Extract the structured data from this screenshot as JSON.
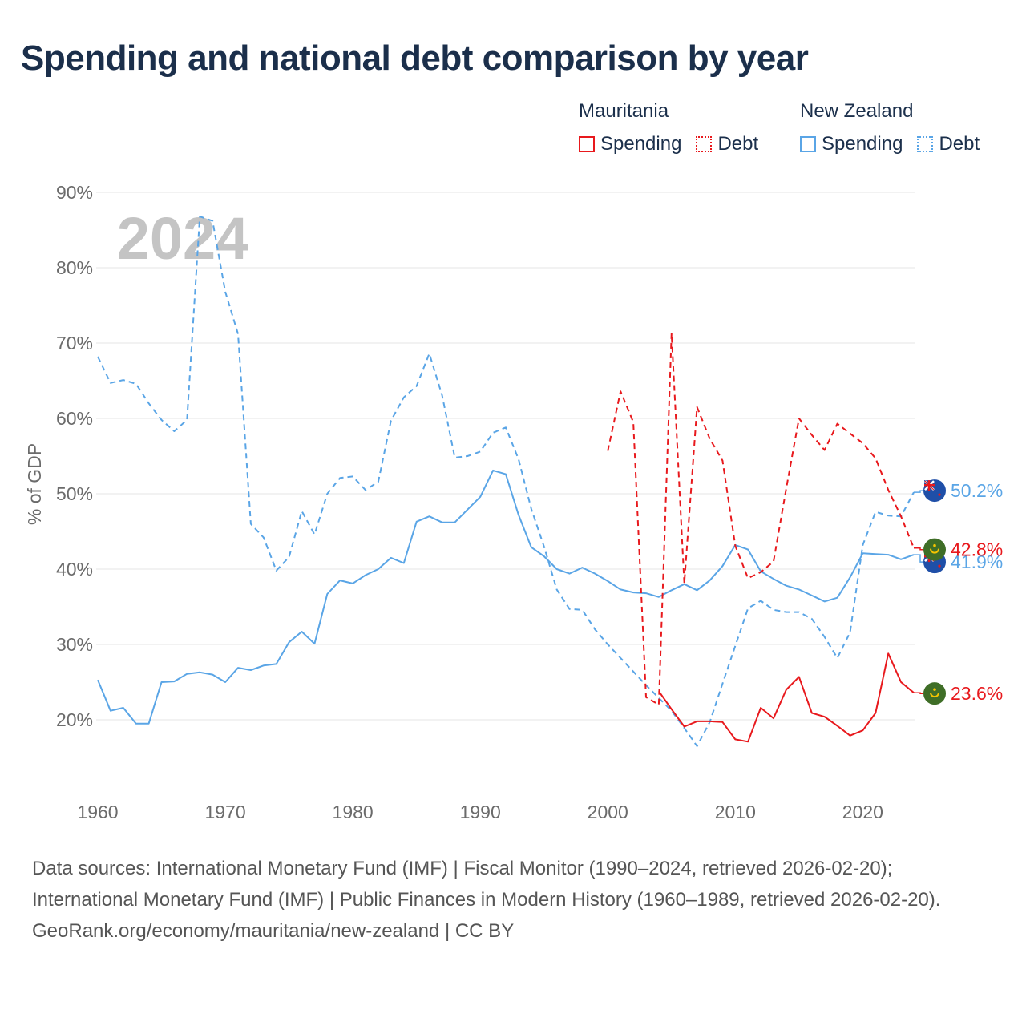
{
  "colors": {
    "title": "#1b2f4b",
    "mauritania": "#e8191d",
    "new_zealand": "#5aa5e6",
    "grid": "#e6e6e6",
    "axis_text": "#6b6b6b",
    "year_watermark": "#c4c4c4",
    "footer": "#555555"
  },
  "legend": {
    "groups": [
      {
        "name": "Mauritania",
        "color": "#e8191d",
        "items": [
          {
            "label": "Spending",
            "style": "solid"
          },
          {
            "label": "Debt",
            "style": "dotted"
          }
        ]
      },
      {
        "name": "New Zealand",
        "color": "#5aa5e6",
        "items": [
          {
            "label": "Spending",
            "style": "solid"
          },
          {
            "label": "Debt",
            "style": "dotted"
          }
        ]
      }
    ]
  },
  "footer": {
    "sources": "Data sources: International Monetary Fund (IMF) | Fiscal Monitor (1990–2024, retrieved 2026-02-20); International Monetary Fund (IMF) | Public Finances in Modern History (1960–1989, retrieved 2026-02-20).",
    "credit": "GeoRank.org/economy/mauritania/new-zealand | CC BY"
  },
  "chart_data": {
    "type": "line",
    "title": "Spending and national debt comparison by year",
    "year_label": "2024",
    "xlabel": "",
    "ylabel": "% of GDP",
    "xlim": [
      1960,
      2024
    ],
    "ylim": [
      10,
      90
    ],
    "x_ticks": [
      1960,
      1970,
      1980,
      1990,
      2000,
      2010,
      2020
    ],
    "y_ticks": [
      20,
      30,
      40,
      50,
      60,
      70,
      80,
      90
    ],
    "y_tick_labels": [
      "20%",
      "30%",
      "40%",
      "50%",
      "60%",
      "70%",
      "80%",
      "90%"
    ],
    "grid": true,
    "series": [
      {
        "name": "New Zealand Debt",
        "country": "New Zealand",
        "metric": "Debt",
        "style": "dashed",
        "color": "#5aa5e6",
        "end_label": "50.2%",
        "x": [
          1960,
          1961,
          1962,
          1963,
          1964,
          1965,
          1966,
          1967,
          1968,
          1969,
          1970,
          1971,
          1972,
          1973,
          1974,
          1975,
          1976,
          1977,
          1978,
          1979,
          1980,
          1981,
          1982,
          1983,
          1984,
          1985,
          1986,
          1987,
          1988,
          1989,
          1990,
          1991,
          1992,
          1993,
          1994,
          1995,
          1996,
          1997,
          1998,
          1999,
          2000,
          2001,
          2002,
          2003,
          2004,
          2005,
          2006,
          2007,
          2008,
          2009,
          2010,
          2011,
          2012,
          2013,
          2014,
          2015,
          2016,
          2017,
          2018,
          2019,
          2020,
          2021,
          2022,
          2023,
          2024
        ],
        "values": [
          68.2,
          64.7,
          65.1,
          64.6,
          62.0,
          59.8,
          58.3,
          59.8,
          86.8,
          86.2,
          76.8,
          71.2,
          46.0,
          44.2,
          39.8,
          41.6,
          47.7,
          44.6,
          50.0,
          52.1,
          52.3,
          50.5,
          51.6,
          59.7,
          62.8,
          64.3,
          68.6,
          63.1,
          54.8,
          55.0,
          55.6,
          58.1,
          58.8,
          54.6,
          48.0,
          43.0,
          37.3,
          34.7,
          34.6,
          32.0,
          30.0,
          28.2,
          26.4,
          24.6,
          22.9,
          21.2,
          18.9,
          16.5,
          19.7,
          24.8,
          29.8,
          34.8,
          35.8,
          34.6,
          34.3,
          34.3,
          33.4,
          31.0,
          28.2,
          31.6,
          43.2,
          47.6,
          47.1,
          47.0,
          50.2
        ]
      },
      {
        "name": "New Zealand Spending",
        "country": "New Zealand",
        "metric": "Spending",
        "style": "solid",
        "color": "#5aa5e6",
        "end_label": "41.9%",
        "x": [
          1960,
          1961,
          1962,
          1963,
          1964,
          1965,
          1966,
          1967,
          1968,
          1969,
          1970,
          1971,
          1972,
          1973,
          1974,
          1975,
          1976,
          1977,
          1978,
          1979,
          1980,
          1981,
          1982,
          1983,
          1984,
          1985,
          1986,
          1987,
          1988,
          1989,
          1990,
          1991,
          1992,
          1993,
          1994,
          1995,
          1996,
          1997,
          1998,
          1999,
          2000,
          2001,
          2002,
          2003,
          2004,
          2005,
          2006,
          2007,
          2008,
          2009,
          2010,
          2011,
          2012,
          2013,
          2014,
          2015,
          2016,
          2017,
          2018,
          2019,
          2020,
          2021,
          2022,
          2023,
          2024
        ],
        "values": [
          25.3,
          21.2,
          21.6,
          19.5,
          19.5,
          25.0,
          25.1,
          26.1,
          26.3,
          26.0,
          25.0,
          26.9,
          26.6,
          27.2,
          27.4,
          30.3,
          31.7,
          30.1,
          36.7,
          38.5,
          38.1,
          39.2,
          40.0,
          41.5,
          40.8,
          46.3,
          47.0,
          46.2,
          46.2,
          47.9,
          49.6,
          53.1,
          52.6,
          47.2,
          42.9,
          41.7,
          40.0,
          39.4,
          40.2,
          39.4,
          38.4,
          37.3,
          36.9,
          36.8,
          36.3,
          37.2,
          38.0,
          37.2,
          38.5,
          40.4,
          43.2,
          42.6,
          39.7,
          38.7,
          37.8,
          37.3,
          36.5,
          35.7,
          36.2,
          38.9,
          42.1,
          42.0,
          41.9,
          41.3,
          41.9
        ]
      },
      {
        "name": "Mauritania Debt",
        "country": "Mauritania",
        "metric": "Debt",
        "style": "dashed",
        "color": "#e8191d",
        "end_label": "42.8%",
        "x": [
          2000,
          2001,
          2002,
          2003,
          2004,
          2005,
          2006,
          2007,
          2008,
          2009,
          2010,
          2011,
          2012,
          2013,
          2014,
          2015,
          2016,
          2017,
          2018,
          2019,
          2020,
          2021,
          2022,
          2023,
          2024
        ],
        "values": [
          55.7,
          63.6,
          59.5,
          23.0,
          22.0,
          71.3,
          38.1,
          61.5,
          57.3,
          54.4,
          43.1,
          38.8,
          39.6,
          41.0,
          50.7,
          60.0,
          57.8,
          55.8,
          59.3,
          58.0,
          56.7,
          54.7,
          50.5,
          47.0,
          42.8
        ]
      },
      {
        "name": "Mauritania Spending",
        "country": "Mauritania",
        "metric": "Spending",
        "style": "solid",
        "color": "#e8191d",
        "end_label": "23.6%",
        "x": [
          2004,
          2005,
          2006,
          2007,
          2008,
          2009,
          2010,
          2011,
          2012,
          2013,
          2014,
          2015,
          2016,
          2017,
          2018,
          2019,
          2020,
          2021,
          2022,
          2023,
          2024
        ],
        "values": [
          23.8,
          21.4,
          19.1,
          19.8,
          19.8,
          19.7,
          17.4,
          17.1,
          21.6,
          20.2,
          24.0,
          25.7,
          20.9,
          20.4,
          19.2,
          17.9,
          18.6,
          20.9,
          28.8,
          25.0,
          23.6
        ]
      }
    ]
  }
}
